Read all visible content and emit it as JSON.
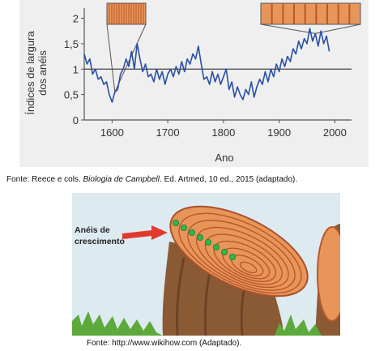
{
  "chart_data": {
    "type": "line",
    "xlabel": "Ano",
    "ylabel_line1": "Índices de largura",
    "ylabel_line2": "dos anéis",
    "x_ticks": [
      1600,
      1700,
      1800,
      1900,
      2000
    ],
    "y_ticks": [
      "0",
      "0,5",
      "1",
      "1,5",
      "2"
    ],
    "y_tick_values": [
      0,
      0.5,
      1,
      1.5,
      2
    ],
    "xlim": [
      1550,
      2030
    ],
    "ylim": [
      0,
      2.2
    ],
    "reference_line": 1,
    "grid": false,
    "series": [
      {
        "x": [
          1550,
          1555,
          1560,
          1565,
          1570,
          1575,
          1580,
          1585,
          1590,
          1595,
          1600,
          1605,
          1610,
          1615,
          1620,
          1625,
          1630,
          1635,
          1640,
          1645,
          1650,
          1655,
          1660,
          1665,
          1670,
          1675,
          1680,
          1685,
          1690,
          1695,
          1700,
          1705,
          1710,
          1715,
          1720,
          1725,
          1730,
          1735,
          1740,
          1745,
          1750,
          1755,
          1760,
          1765,
          1770,
          1775,
          1780,
          1785,
          1790,
          1795,
          1800,
          1805,
          1810,
          1815,
          1820,
          1825,
          1830,
          1835,
          1840,
          1845,
          1850,
          1855,
          1860,
          1865,
          1870,
          1875,
          1880,
          1885,
          1890,
          1895,
          1900,
          1905,
          1910,
          1915,
          1920,
          1925,
          1930,
          1935,
          1940,
          1945,
          1950,
          1955,
          1960,
          1965,
          1970,
          1975,
          1980,
          1985,
          1990
        ],
        "y": [
          1.3,
          1.1,
          1.2,
          0.9,
          1.0,
          0.8,
          0.85,
          0.7,
          0.75,
          0.5,
          0.35,
          0.55,
          0.6,
          0.9,
          1.0,
          1.2,
          1.05,
          1.35,
          1.0,
          1.5,
          1.2,
          0.95,
          1.1,
          0.85,
          0.9,
          0.75,
          1.0,
          0.8,
          0.95,
          0.7,
          0.9,
          1.0,
          0.85,
          1.05,
          0.9,
          1.15,
          0.95,
          1.2,
          1.1,
          1.3,
          1.2,
          1.45,
          1.1,
          0.8,
          0.85,
          0.7,
          0.95,
          0.75,
          0.9,
          0.7,
          0.85,
          1.0,
          0.6,
          0.75,
          0.45,
          0.65,
          0.5,
          0.4,
          0.6,
          0.5,
          0.75,
          0.45,
          0.65,
          0.8,
          0.7,
          0.95,
          0.75,
          1.0,
          0.85,
          1.1,
          0.95,
          1.2,
          1.05,
          1.25,
          1.15,
          1.4,
          1.3,
          1.55,
          1.4,
          1.6,
          1.5,
          1.8,
          1.55,
          1.7,
          1.45,
          1.75,
          1.5,
          1.65,
          1.35
        ]
      }
    ]
  },
  "captions": {
    "chart_source_prefix": "Fonte: Reece e cols. ",
    "chart_source_title": "Biologia de Campbell",
    "chart_source_suffix": ". Ed. Artmed, 10 ed., 2015 (adaptado).",
    "image_source": "Fonte: http://www.wikihow.com (Adaptado)."
  },
  "illustration": {
    "label_line1": "Anéis de",
    "label_line2": "crescimento",
    "arrow_color": "#e03a2f",
    "dot_color": "#2fb84a",
    "wood_color": "#e8955a",
    "ring_color": "#b9572a",
    "bark_color": "#8a5a34",
    "sky_color": "#ddeaf0",
    "grass_color": "#5da93c"
  },
  "colors": {
    "line": "#2a4fa3",
    "chart_background": "#efefef",
    "axis": "#555555"
  }
}
